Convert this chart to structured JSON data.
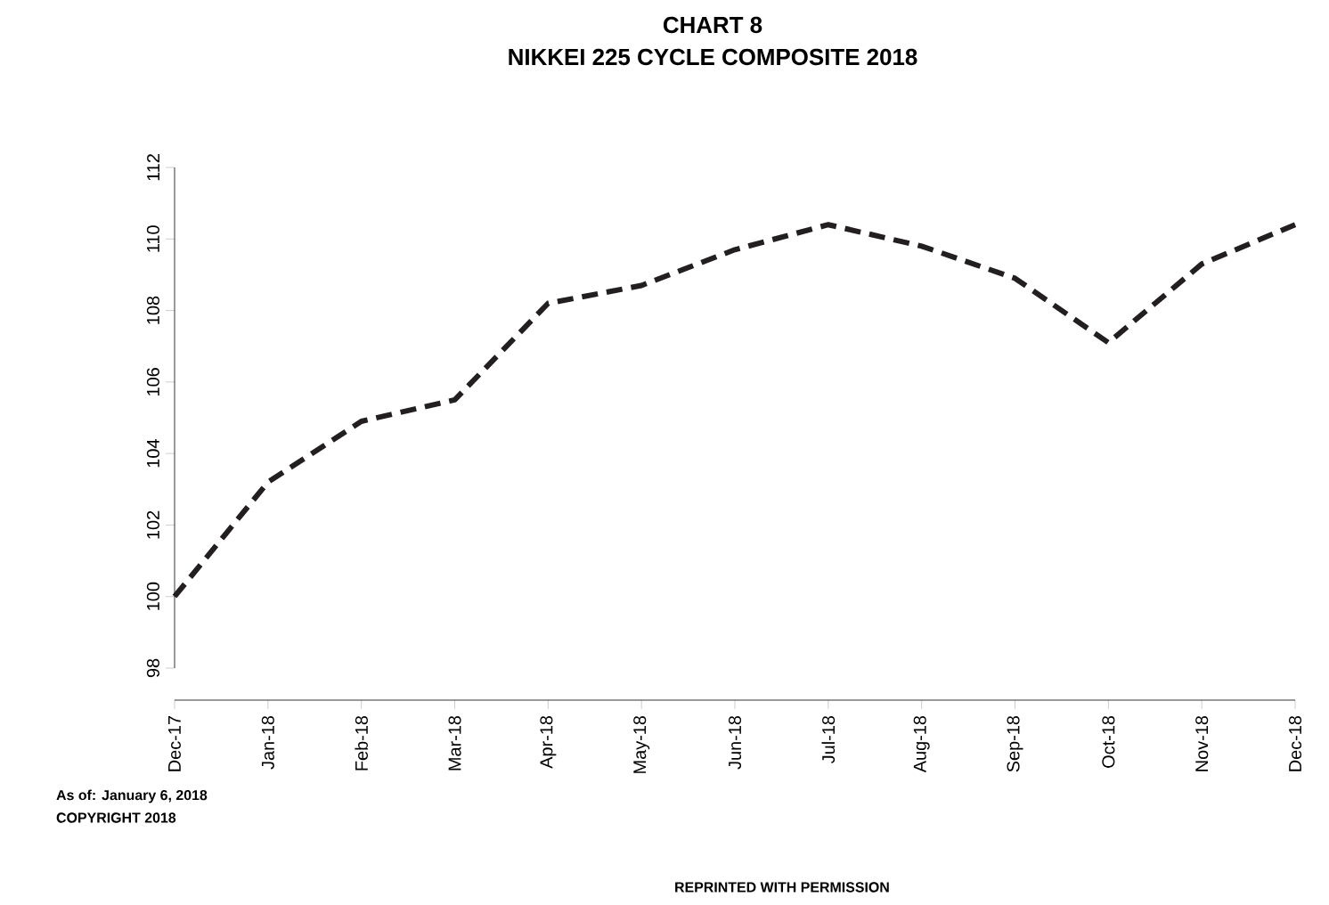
{
  "chart_data": {
    "type": "line",
    "title": "CHART 8",
    "subtitle": "NIKKEI 225 CYCLE COMPOSITE 2018",
    "categories": [
      "Dec-17",
      "Jan-18",
      "Feb-18",
      "Mar-18",
      "Apr-18",
      "May-18",
      "Jun-18",
      "Jul-18",
      "Aug-18",
      "Sep-18",
      "Oct-18",
      "Nov-18",
      "Dec-18"
    ],
    "values": [
      100.0,
      103.2,
      104.9,
      105.5,
      108.2,
      108.7,
      109.7,
      110.4,
      109.8,
      108.9,
      107.1,
      109.3,
      110.4
    ],
    "color": "#231f20",
    "line_style": "dashed",
    "ylim": [
      98,
      112
    ],
    "yticks": [
      98,
      100,
      102,
      104,
      106,
      108,
      110,
      112
    ],
    "annotations": [
      "As of: January 6, 2018",
      "COPYRIGHT 2018",
      "REPRINTED WITH PERMISSION"
    ]
  }
}
